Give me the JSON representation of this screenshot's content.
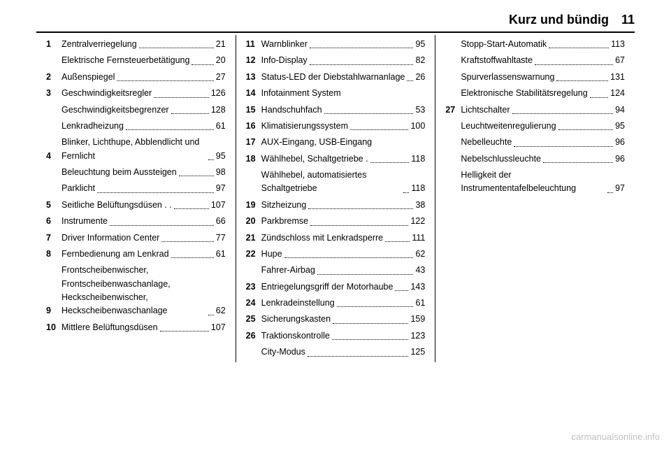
{
  "header": {
    "title": "Kurz und bündig",
    "page": "11"
  },
  "watermark": "carmanualsonline.info",
  "columns": [
    [
      {
        "n": "1",
        "label": "Zentralverriegelung",
        "p": "21"
      },
      {
        "n": "",
        "label": "Elektrische Fernsteuerbetätigung",
        "p": "20"
      },
      {
        "n": "2",
        "label": "Außenspiegel",
        "p": "27"
      },
      {
        "n": "3",
        "label": "Geschwindigkeitsregler",
        "p": "126"
      },
      {
        "n": "",
        "label": "Geschwindigkeitsbegrenzer",
        "p": "128"
      },
      {
        "n": "",
        "label": "Lenkradheizung",
        "p": "61"
      },
      {
        "n": "4",
        "label": "Blinker, Lichthupe, Abblendlicht und Fernlicht",
        "p": "95"
      },
      {
        "n": "",
        "label": "Beleuchtung beim Aussteigen",
        "p": "98"
      },
      {
        "n": "",
        "label": "Parklicht",
        "p": "97"
      },
      {
        "n": "5",
        "label": "Seitliche Belüftungsdüsen . .",
        "p": "107"
      },
      {
        "n": "6",
        "label": "Instrumente",
        "p": "66"
      },
      {
        "n": "7",
        "label": "Driver Information Center",
        "p": "77"
      },
      {
        "n": "8",
        "label": "Fernbedienung am Lenkrad",
        "p": "61"
      },
      {
        "n": "9",
        "label": "Frontscheibenwischer, Frontscheibenwaschanlage, Heckscheibenwischer, Heckscheibenwaschanlage",
        "p": "62"
      },
      {
        "n": "10",
        "label": "Mittlere Belüftungsdüsen",
        "p": "107"
      }
    ],
    [
      {
        "n": "11",
        "label": "Warnblinker",
        "p": "95"
      },
      {
        "n": "12",
        "label": "Info-Display",
        "p": "82"
      },
      {
        "n": "13",
        "label": "Status-LED der Diebstahlwarnanlage",
        "p": "26"
      },
      {
        "n": "14",
        "label": "Infotainment System",
        "p": ""
      },
      {
        "n": "15",
        "label": "Handschuhfach",
        "p": "53"
      },
      {
        "n": "16",
        "label": "Klimatisierungssystem",
        "p": "100"
      },
      {
        "n": "17",
        "label": "AUX-Eingang, USB-Eingang",
        "p": ""
      },
      {
        "n": "18",
        "label": "Wählhebel, Schaltgetriebe .",
        "p": "118"
      },
      {
        "n": "",
        "label": "Wählhebel, automatisiertes Schaltgetriebe",
        "p": "118"
      },
      {
        "n": "19",
        "label": "Sitzheizung",
        "p": "38"
      },
      {
        "n": "20",
        "label": "Parkbremse",
        "p": "122"
      },
      {
        "n": "21",
        "label": "Zündschloss mit Lenkradsperre",
        "p": "111"
      },
      {
        "n": "22",
        "label": "Hupe",
        "p": "62"
      },
      {
        "n": "",
        "label": "Fahrer-Airbag",
        "p": "43"
      },
      {
        "n": "23",
        "label": "Entriegelungsgriff der Motorhaube",
        "p": "143"
      },
      {
        "n": "24",
        "label": "Lenkradeinstellung",
        "p": "61"
      },
      {
        "n": "25",
        "label": "Sicherungskasten",
        "p": "159"
      },
      {
        "n": "26",
        "label": "Traktionskontrolle",
        "p": "123"
      },
      {
        "n": "",
        "label": "City-Modus",
        "p": "125"
      }
    ],
    [
      {
        "n": "",
        "label": "Stopp-Start-Automatik",
        "p": "113"
      },
      {
        "n": "",
        "label": "Kraftstoffwahltaste",
        "p": "67"
      },
      {
        "n": "",
        "label": "Spurverlassenswarnung",
        "p": "131"
      },
      {
        "n": "",
        "label": "Elektronische Stabilitätsregelung",
        "p": "124"
      },
      {
        "n": "27",
        "label": "Lichtschalter",
        "p": "94"
      },
      {
        "n": "",
        "label": "Leuchtweitenregulierung",
        "p": "95"
      },
      {
        "n": "",
        "label": "Nebelleuchte",
        "p": "96"
      },
      {
        "n": "",
        "label": "Nebelschlussleuchte",
        "p": "96"
      },
      {
        "n": "",
        "label": "Helligkeit der Instrumententafelbeleuchtung",
        "p": "97"
      }
    ]
  ]
}
